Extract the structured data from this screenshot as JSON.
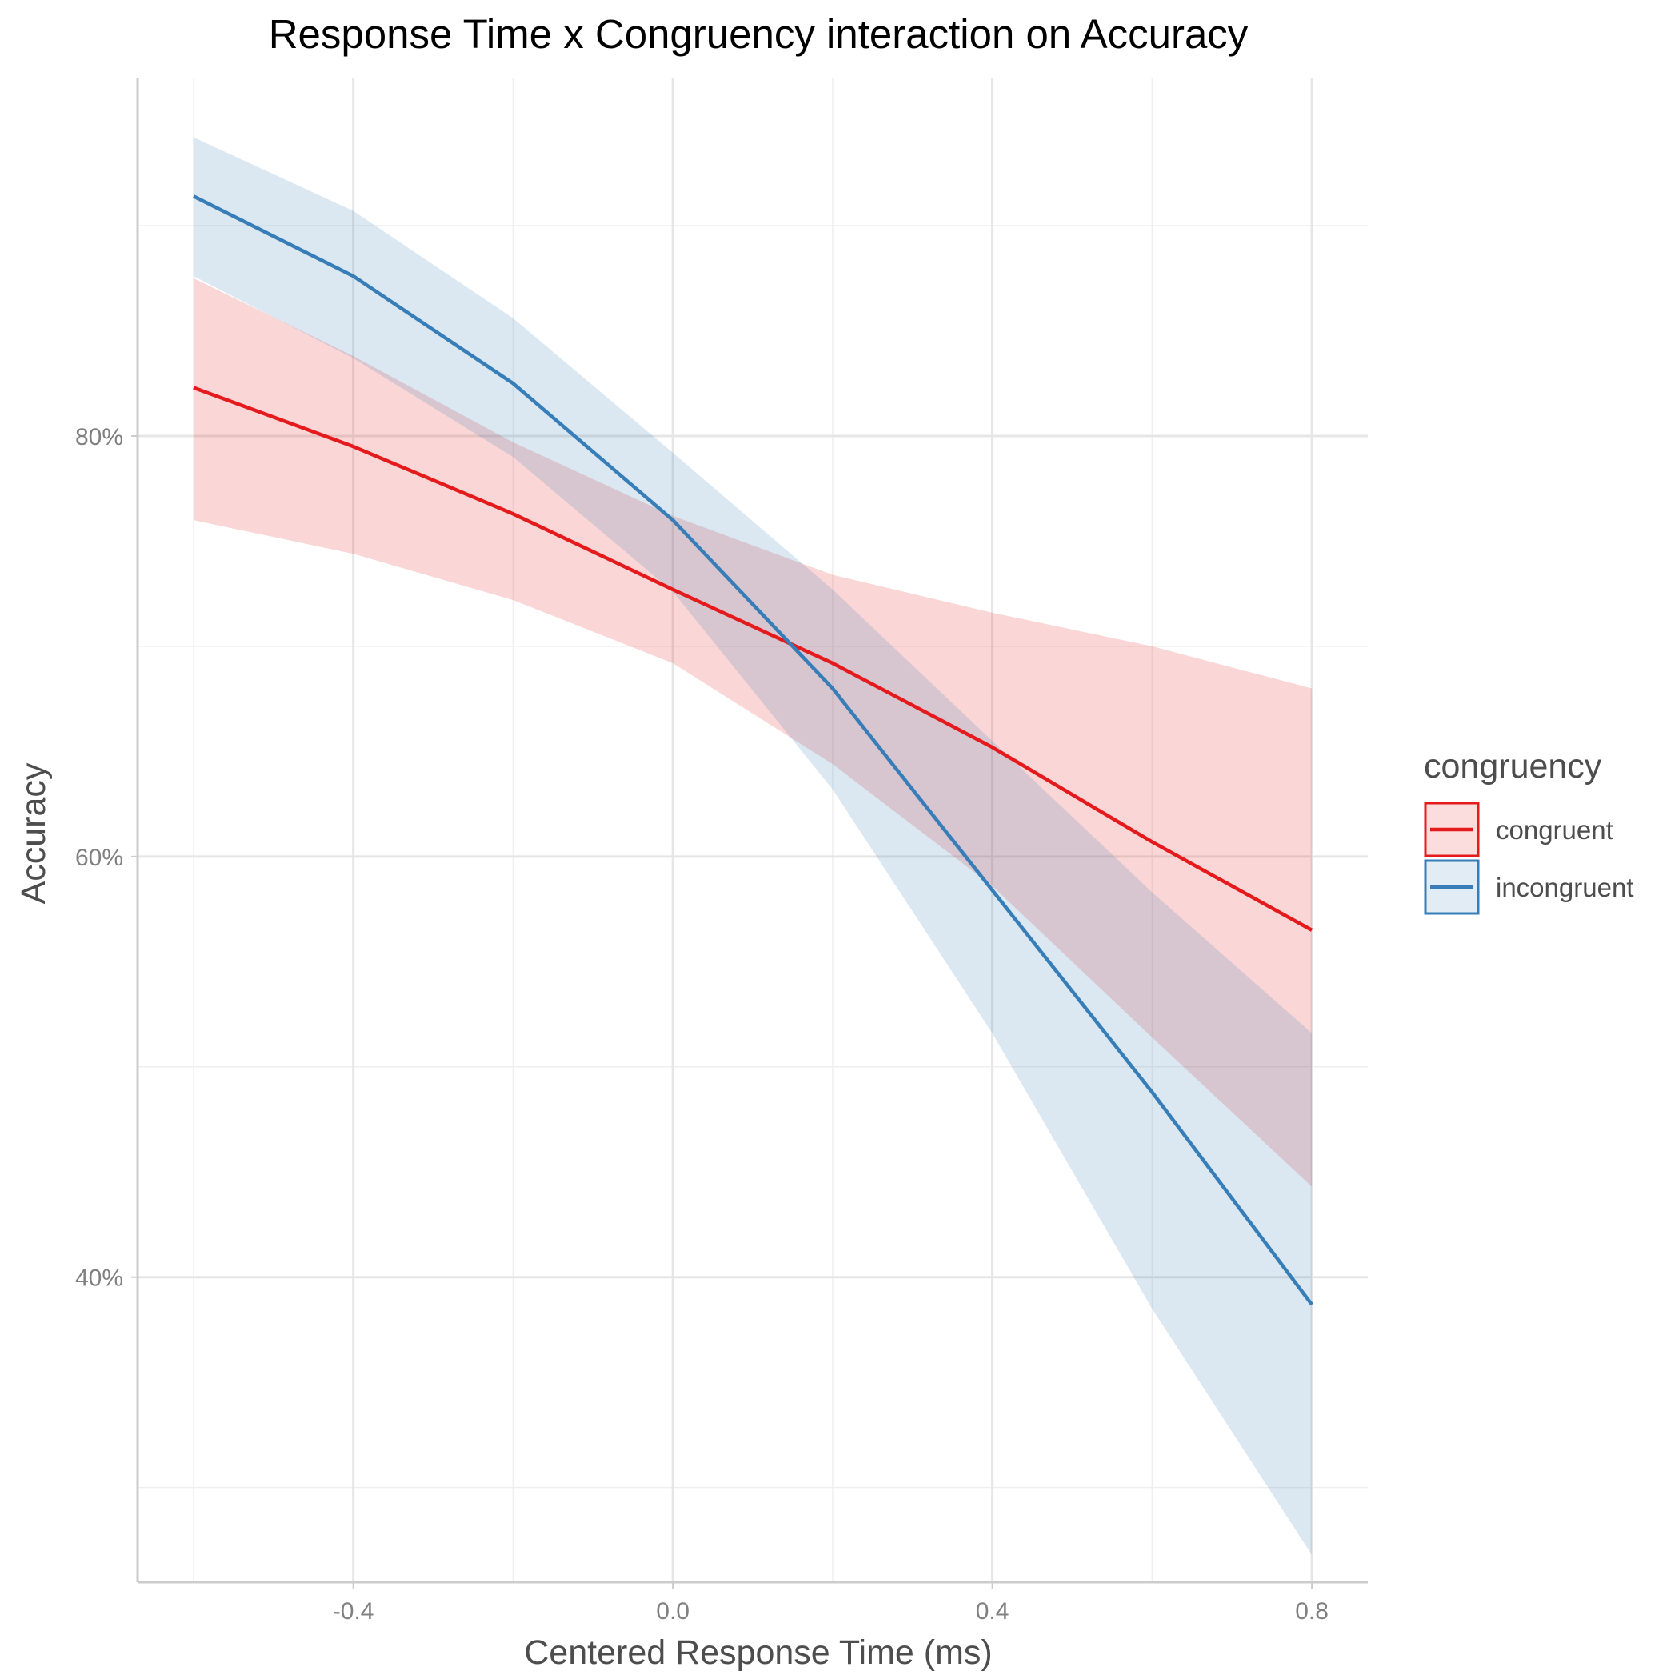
{
  "chart_data": {
    "type": "line",
    "title": "Response Time x Congruency interaction on Accuracy",
    "xlabel": "Centered Response Time (ms)",
    "ylabel": "Accuracy",
    "xlim": [
      -0.67,
      0.87
    ],
    "ylim": [
      0.255,
      0.97
    ],
    "x_ticks": [
      {
        "value": -0.4,
        "label": "-0.4"
      },
      {
        "value": 0.0,
        "label": "0.0"
      },
      {
        "value": 0.4,
        "label": "0.4"
      },
      {
        "value": 0.8,
        "label": "0.8"
      }
    ],
    "x_minor_ticks": [
      -0.6,
      -0.2,
      0.2,
      0.6
    ],
    "y_ticks": [
      {
        "value": 0.4,
        "label": "40%"
      },
      {
        "value": 0.6,
        "label": "60%"
      },
      {
        "value": 0.8,
        "label": "80%"
      }
    ],
    "y_minor_ticks": [
      0.3,
      0.5,
      0.7,
      0.9
    ],
    "grid": true,
    "legend": {
      "title": "congruency",
      "position": "right"
    },
    "series": [
      {
        "name": "congruent",
        "color": "#e41a1c",
        "x": [
          -0.6,
          -0.4,
          -0.2,
          0.0,
          0.2,
          0.4,
          0.6,
          0.8
        ],
        "y": [
          0.823,
          0.795,
          0.763,
          0.727,
          0.692,
          0.652,
          0.607,
          0.565
        ],
        "ci_low": [
          0.76,
          0.744,
          0.722,
          0.692,
          0.644,
          0.586,
          0.514,
          0.443
        ],
        "ci_high": [
          0.875,
          0.838,
          0.797,
          0.762,
          0.734,
          0.716,
          0.7,
          0.68
        ]
      },
      {
        "name": "incongruent",
        "color": "#377eb8",
        "x": [
          -0.6,
          -0.4,
          -0.2,
          0.0,
          0.2,
          0.4,
          0.6,
          0.8
        ],
        "y": [
          0.914,
          0.876,
          0.825,
          0.76,
          0.68,
          0.584,
          0.488,
          0.387
        ],
        "ci_low": [
          0.876,
          0.837,
          0.79,
          0.726,
          0.632,
          0.516,
          0.385,
          0.268
        ],
        "ci_high": [
          0.942,
          0.907,
          0.856,
          0.792,
          0.727,
          0.655,
          0.583,
          0.516
        ]
      }
    ]
  }
}
